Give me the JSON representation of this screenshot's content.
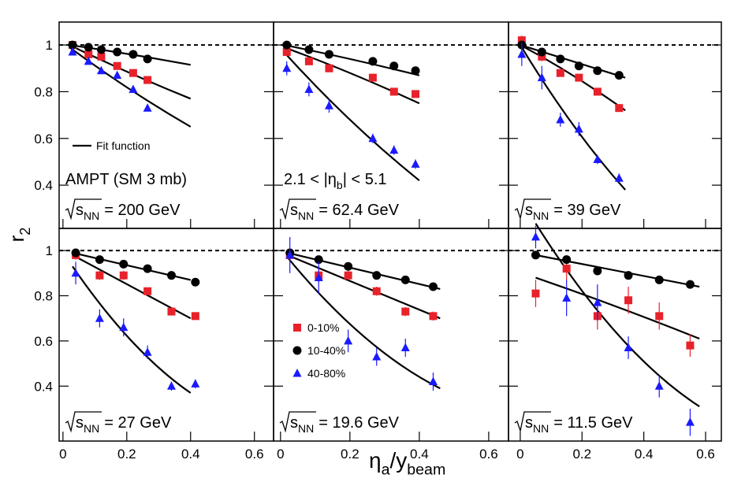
{
  "axis_labels": {
    "y": "r",
    "y_sub": "2",
    "x": "η",
    "x_sub": "a",
    "x_tail": "/y",
    "x_tail_sub": "beam"
  },
  "energy_symbol": "s",
  "energy_sub": "NN",
  "chart_data": [
    {
      "type": "scatter",
      "energy": "= 200 GeV",
      "xlim": [
        -0.012,
        0.66
      ],
      "ylim": [
        0.215,
        1.098
      ],
      "xticks": [
        0,
        0.2,
        0.4,
        0.6
      ],
      "yticks": [
        0.4,
        0.6,
        0.8,
        1
      ],
      "reference_line": 1,
      "annotation": "AMPT (SM 3 mb)",
      "fit_label": "Fit function",
      "series": [
        {
          "color": "#e8222a",
          "marker": "square",
          "x": [
            0.03,
            0.08,
            0.12,
            0.17,
            0.22,
            0.265
          ],
          "values": [
            1.0,
            0.96,
            0.95,
            0.91,
            0.88,
            0.85
          ],
          "errors": [
            0.01,
            0.01,
            0.01,
            0.01,
            0.01,
            0.01
          ]
        },
        {
          "color": "#000000",
          "marker": "circle",
          "x": [
            0.03,
            0.08,
            0.12,
            0.17,
            0.22,
            0.265
          ],
          "values": [
            1.0,
            0.99,
            0.98,
            0.97,
            0.96,
            0.94
          ],
          "errors": [
            0.005,
            0.005,
            0.005,
            0.005,
            0.005,
            0.005
          ]
        },
        {
          "color": "#1a1aff",
          "marker": "triangle",
          "x": [
            0.03,
            0.08,
            0.12,
            0.17,
            0.22,
            0.265
          ],
          "values": [
            0.97,
            0.93,
            0.89,
            0.87,
            0.81,
            0.73
          ],
          "errors": [
            0.01,
            0.01,
            0.01,
            0.01,
            0.01,
            0.01
          ]
        }
      ],
      "fits": [
        {
          "x": [
            0.02,
            0.21,
            0.4
          ],
          "values": [
            1.0,
            0.96,
            0.915
          ]
        },
        {
          "x": [
            0.02,
            0.21,
            0.4
          ],
          "values": [
            1.0,
            0.88,
            0.77
          ]
        },
        {
          "x": [
            0.02,
            0.21,
            0.4
          ],
          "values": [
            0.99,
            0.81,
            0.65
          ]
        }
      ]
    },
    {
      "type": "scatter",
      "energy": "= 62.4 GeV",
      "xlim": [
        -0.02,
        0.657
      ],
      "ylim": [
        0.215,
        1.098
      ],
      "xticks": [
        0,
        0.2,
        0.4,
        0.6
      ],
      "yticks": [
        0.4,
        0.6,
        0.8,
        1
      ],
      "reference_line": 1,
      "eta_label": {
        "pre": "2.1 < |η",
        "sub": "b",
        "post": "| < 5.1"
      },
      "series": [
        {
          "color": "#e8222a",
          "marker": "square",
          "x": [
            0.018,
            0.082,
            0.14,
            0.266,
            0.327,
            0.389
          ],
          "values": [
            0.97,
            0.93,
            0.9,
            0.86,
            0.8,
            0.79
          ],
          "errors": [
            0.01,
            0.01,
            0.01,
            0.01,
            0.01,
            0.01
          ]
        },
        {
          "color": "#000000",
          "marker": "circle",
          "x": [
            0.018,
            0.082,
            0.14,
            0.266,
            0.327,
            0.389
          ],
          "values": [
            1.0,
            0.98,
            0.96,
            0.93,
            0.91,
            0.89
          ],
          "errors": [
            0.005,
            0.005,
            0.005,
            0.005,
            0.005,
            0.005
          ]
        },
        {
          "color": "#1a1aff",
          "marker": "triangle",
          "x": [
            0.018,
            0.082,
            0.14,
            0.266,
            0.327,
            0.389
          ],
          "values": [
            0.9,
            0.81,
            0.74,
            0.6,
            0.55,
            0.49
          ],
          "errors": [
            0.03,
            0.03,
            0.03,
            0.02,
            0.02,
            0.02
          ]
        }
      ],
      "fits": [
        {
          "x": [
            0.01,
            0.2,
            0.4
          ],
          "values": [
            1.0,
            0.94,
            0.87
          ]
        },
        {
          "x": [
            0.01,
            0.2,
            0.4
          ],
          "values": [
            0.99,
            0.88,
            0.75
          ]
        },
        {
          "x": [
            0.01,
            0.2,
            0.4
          ],
          "values": [
            0.97,
            0.68,
            0.42
          ]
        }
      ]
    },
    {
      "type": "scatter",
      "energy": "= 39 GeV",
      "xlim": [
        -0.038,
        0.651
      ],
      "ylim": [
        0.215,
        1.098
      ],
      "xticks": [
        0,
        0.2,
        0.4,
        0.6
      ],
      "yticks": [
        0.4,
        0.6,
        0.8,
        1
      ],
      "reference_line": 1,
      "series": [
        {
          "color": "#e8222a",
          "marker": "square",
          "x": [
            0.005,
            0.07,
            0.13,
            0.19,
            0.25,
            0.32
          ],
          "values": [
            1.02,
            0.95,
            0.88,
            0.86,
            0.8,
            0.73
          ],
          "errors": [
            0.02,
            0.02,
            0.015,
            0.015,
            0.015,
            0.015
          ]
        },
        {
          "color": "#000000",
          "marker": "circle",
          "x": [
            0.005,
            0.07,
            0.13,
            0.19,
            0.25,
            0.32
          ],
          "values": [
            1.0,
            0.97,
            0.94,
            0.91,
            0.89,
            0.87
          ],
          "errors": [
            0.005,
            0.005,
            0.005,
            0.005,
            0.005,
            0.005
          ]
        },
        {
          "color": "#1a1aff",
          "marker": "triangle",
          "x": [
            0.005,
            0.07,
            0.13,
            0.19,
            0.25,
            0.32
          ],
          "values": [
            0.96,
            0.86,
            0.68,
            0.64,
            0.51,
            0.43
          ],
          "errors": [
            0.05,
            0.05,
            0.03,
            0.03,
            0.02,
            0.02
          ]
        }
      ],
      "fits": [
        {
          "x": [
            0.0,
            0.17,
            0.34
          ],
          "values": [
            1.0,
            0.93,
            0.86
          ]
        },
        {
          "x": [
            0.0,
            0.17,
            0.34
          ],
          "values": [
            1.0,
            0.87,
            0.72
          ]
        },
        {
          "x": [
            0.0,
            0.17,
            0.34
          ],
          "values": [
            1.0,
            0.66,
            0.38
          ]
        }
      ]
    },
    {
      "type": "scatter",
      "energy": "= 27 GeV",
      "xlim": [
        -0.012,
        0.66
      ],
      "ylim": [
        0.157,
        1.098
      ],
      "xticks": [
        0,
        0.2,
        0.4,
        0.6
      ],
      "yticks": [
        0.4,
        0.6,
        0.8,
        1
      ],
      "reference_line": 1,
      "series": [
        {
          "color": "#e8222a",
          "marker": "square",
          "x": [
            0.04,
            0.115,
            0.19,
            0.265,
            0.34,
            0.415
          ],
          "values": [
            0.98,
            0.89,
            0.89,
            0.82,
            0.73,
            0.71
          ],
          "errors": [
            0.02,
            0.02,
            0.02,
            0.015,
            0.015,
            0.015
          ]
        },
        {
          "color": "#000000",
          "marker": "circle",
          "x": [
            0.04,
            0.115,
            0.19,
            0.265,
            0.34,
            0.415
          ],
          "values": [
            0.99,
            0.96,
            0.94,
            0.92,
            0.89,
            0.86
          ],
          "errors": [
            0.005,
            0.005,
            0.005,
            0.005,
            0.005,
            0.005
          ]
        },
        {
          "color": "#1a1aff",
          "marker": "triangle",
          "x": [
            0.04,
            0.115,
            0.19,
            0.265,
            0.34,
            0.415
          ],
          "values": [
            0.9,
            0.7,
            0.66,
            0.55,
            0.4,
            0.41
          ],
          "errors": [
            0.05,
            0.04,
            0.04,
            0.03,
            0.02,
            0.02
          ]
        }
      ],
      "fits": [
        {
          "x": [
            0.03,
            0.215,
            0.4
          ],
          "values": [
            0.99,
            0.93,
            0.87
          ]
        },
        {
          "x": [
            0.03,
            0.215,
            0.4
          ],
          "values": [
            0.98,
            0.84,
            0.7
          ]
        },
        {
          "x": [
            0.03,
            0.215,
            0.4
          ],
          "values": [
            0.93,
            0.6,
            0.37
          ]
        }
      ]
    },
    {
      "type": "scatter",
      "energy": "= 19.6 GeV",
      "xlim": [
        -0.02,
        0.657
      ],
      "ylim": [
        0.157,
        1.098
      ],
      "xticks": [
        0,
        0.2,
        0.4,
        0.6
      ],
      "yticks": [
        0.4,
        0.6,
        0.8,
        1
      ],
      "reference_line": 1,
      "legend": true,
      "series": [
        {
          "name": "0-10%",
          "color": "#e8222a",
          "marker": "square",
          "x": [
            0.027,
            0.11,
            0.195,
            0.277,
            0.36,
            0.44
          ],
          "values": [
            0.98,
            0.89,
            0.89,
            0.82,
            0.73,
            0.71
          ],
          "errors": [
            0.03,
            0.03,
            0.02,
            0.02,
            0.02,
            0.02
          ]
        },
        {
          "name": "10-40%",
          "color": "#000000",
          "marker": "circle",
          "x": [
            0.027,
            0.11,
            0.195,
            0.277,
            0.36,
            0.44
          ],
          "values": [
            0.99,
            0.96,
            0.93,
            0.89,
            0.87,
            0.84
          ],
          "errors": [
            0.005,
            0.005,
            0.005,
            0.005,
            0.005,
            0.005
          ]
        },
        {
          "name": "40-80%",
          "color": "#1a1aff",
          "marker": "triangle",
          "x": [
            0.027,
            0.11,
            0.195,
            0.277,
            0.36,
            0.44
          ],
          "values": [
            0.98,
            0.88,
            0.6,
            0.53,
            0.57,
            0.42
          ],
          "errors": [
            0.08,
            0.07,
            0.05,
            0.04,
            0.04,
            0.04
          ]
        }
      ],
      "fits": [
        {
          "x": [
            0.02,
            0.24,
            0.46
          ],
          "values": [
            0.99,
            0.91,
            0.83
          ]
        },
        {
          "x": [
            0.02,
            0.24,
            0.46
          ],
          "values": [
            0.98,
            0.84,
            0.7
          ]
        },
        {
          "x": [
            0.02,
            0.24,
            0.46
          ],
          "values": [
            0.97,
            0.62,
            0.39
          ]
        }
      ]
    },
    {
      "type": "scatter",
      "energy": "= 11.5 GeV",
      "xlim": [
        -0.038,
        0.651
      ],
      "ylim": [
        0.157,
        1.098
      ],
      "xticks": [
        0,
        0.2,
        0.4,
        0.6
      ],
      "yticks": [
        0.4,
        0.6,
        0.8,
        1
      ],
      "reference_line": 1,
      "series": [
        {
          "color": "#e8222a",
          "marker": "square",
          "x": [
            0.05,
            0.15,
            0.25,
            0.35,
            0.45,
            0.55
          ],
          "values": [
            0.81,
            0.92,
            0.71,
            0.78,
            0.71,
            0.58
          ],
          "errors": [
            0.06,
            0.05,
            0.06,
            0.06,
            0.06,
            0.05
          ]
        },
        {
          "color": "#000000",
          "marker": "circle",
          "x": [
            0.05,
            0.15,
            0.25,
            0.35,
            0.45,
            0.55
          ],
          "values": [
            0.98,
            0.96,
            0.91,
            0.89,
            0.87,
            0.85
          ],
          "errors": [
            0.005,
            0.005,
            0.005,
            0.005,
            0.005,
            0.005
          ]
        },
        {
          "color": "#1a1aff",
          "marker": "triangle",
          "x": [
            0.05,
            0.15,
            0.25,
            0.35,
            0.45,
            0.55
          ],
          "values": [
            1.06,
            0.79,
            0.77,
            0.57,
            0.4,
            0.24
          ],
          "errors": [
            0.05,
            0.08,
            0.08,
            0.05,
            0.05,
            0.06
          ]
        }
      ],
      "fits": [
        {
          "x": [
            0.05,
            0.315,
            0.58
          ],
          "values": [
            0.98,
            0.91,
            0.84
          ]
        },
        {
          "x": [
            0.05,
            0.315,
            0.58
          ],
          "values": [
            0.88,
            0.75,
            0.61
          ]
        },
        {
          "x": [
            0.05,
            0.315,
            0.58
          ],
          "values": [
            1.12,
            0.63,
            0.31
          ]
        }
      ]
    }
  ]
}
